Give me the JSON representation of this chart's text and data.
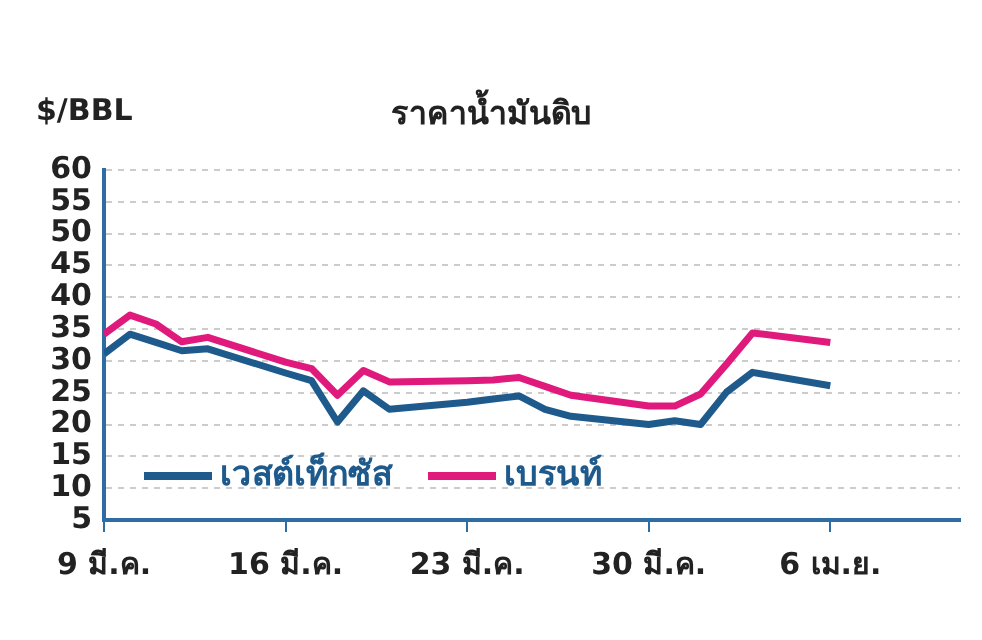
{
  "chart_data": {
    "type": "line",
    "title": "ราคาน้ำมันดิบ",
    "ylabel": "$/BBL",
    "x": [
      "--03-09",
      "--03-10",
      "--03-11",
      "--03-12",
      "--03-13",
      "--03-16",
      "--03-17",
      "--03-18",
      "--03-19",
      "--03-20",
      "--03-23",
      "--03-24",
      "--03-25",
      "--03-26",
      "--03-27",
      "--03-30",
      "--03-31",
      "--04-01",
      "--04-02",
      "--04-03",
      "--04-06"
    ],
    "series": [
      {
        "name": "เวสต์เท็กซัส",
        "color": "#1f5a8c",
        "values": [
          31.1,
          34.2,
          32.9,
          31.6,
          31.9,
          28.1,
          26.9,
          20.4,
          25.3,
          22.4,
          23.5,
          24.0,
          24.5,
          22.4,
          21.3,
          20.0,
          20.6,
          20.0,
          25.1,
          28.2,
          26.1
        ]
      },
      {
        "name": "เบรนท์",
        "color": "#e0197d",
        "values": [
          34.2,
          37.2,
          35.8,
          33.0,
          33.7,
          29.8,
          28.8,
          24.6,
          28.5,
          26.7,
          26.9,
          27.0,
          27.4,
          26.0,
          24.6,
          22.9,
          22.9,
          24.8,
          29.5,
          34.4,
          32.9
        ]
      }
    ],
    "xlim": [
      "--03-09",
      "--04-11"
    ],
    "xticks": [
      {
        "value": "--03-09",
        "label": "9 มี.ค."
      },
      {
        "value": "--03-16",
        "label": "16 มี.ค."
      },
      {
        "value": "--03-23",
        "label": "23 มี.ค."
      },
      {
        "value": "--03-30",
        "label": "30 มี.ค."
      },
      {
        "value": "--04-06",
        "label": "6 เม.ย."
      }
    ],
    "ylim": [
      5,
      60
    ],
    "yticks": [
      5,
      10,
      15,
      20,
      25,
      30,
      35,
      40,
      45,
      50,
      55,
      60
    ],
    "grid": "y",
    "legend": "bottom left",
    "marker": "none",
    "line_style": "solid"
  }
}
